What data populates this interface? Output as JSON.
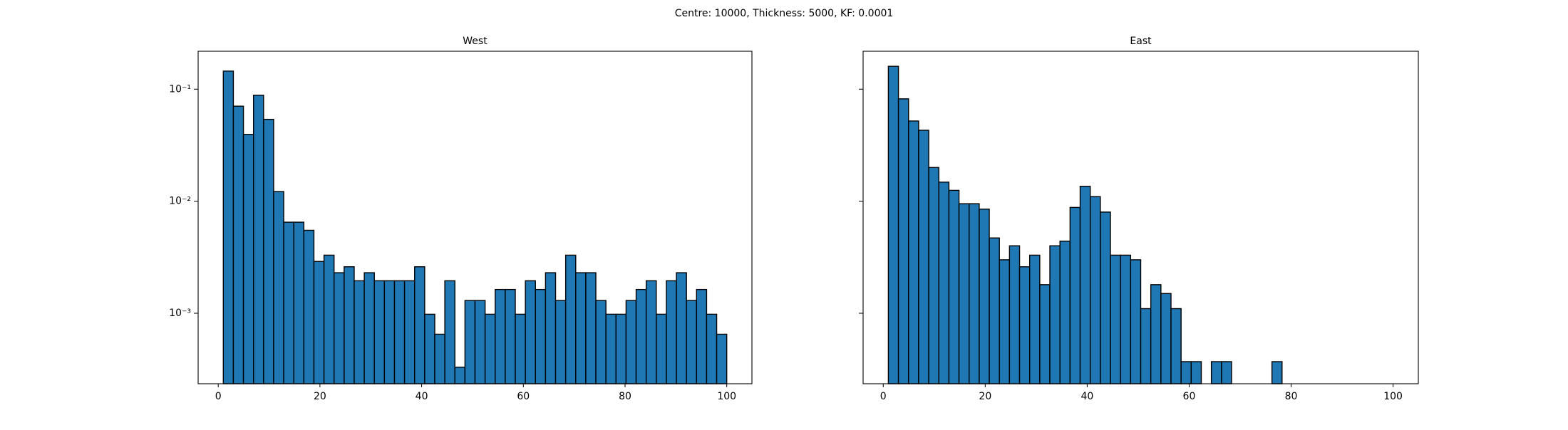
{
  "chart_data": {
    "title": "Centre: 10000, Thickness: 5000, KF: 0.0001",
    "charts": [
      {
        "type": "histogram",
        "title": "West",
        "color": "#1f77b4",
        "edgecolor": "#000000",
        "log_y": true,
        "bins": [
          1,
          2.98,
          4.96,
          6.94,
          8.92,
          10.9,
          12.88,
          14.86,
          16.84,
          18.82,
          20.8,
          22.78,
          24.76,
          26.74,
          28.72,
          30.7,
          32.68,
          34.66,
          36.64,
          38.62,
          40.6,
          42.58,
          44.56,
          46.54,
          48.52,
          50.5,
          52.48,
          54.46,
          56.44,
          58.42,
          60.4,
          62.38,
          64.36,
          66.34,
          68.32,
          70.3,
          72.28,
          74.26,
          76.24,
          78.22,
          80.2,
          82.18,
          84.16,
          86.14,
          88.12,
          90.1,
          92.08,
          94.06,
          96.04,
          98.02,
          100
        ],
        "values": [
          0.145,
          0.0705,
          0.0395,
          0.0884,
          0.0538,
          0.0122,
          0.0065,
          0.0065,
          0.0055,
          0.0029,
          0.0033,
          0.0023,
          0.0026,
          0.00195,
          0.0023,
          0.00195,
          0.00195,
          0.00195,
          0.00195,
          0.0026,
          0.00098,
          0.00065,
          0.00195,
          0.00033,
          0.0013,
          0.0013,
          0.00098,
          0.00163,
          0.00163,
          0.00098,
          0.00195,
          0.00163,
          0.0023,
          0.0013,
          0.0033,
          0.0023,
          0.0023,
          0.0013,
          0.00098,
          0.00098,
          0.0013,
          0.00163,
          0.00195,
          0.00098,
          0.00195,
          0.0023,
          0.0013,
          0.00163,
          0.00098,
          0.00065
        ],
        "xlim": [
          -3.95,
          104.95
        ],
        "xticks": [
          0,
          20,
          40,
          60,
          80,
          100
        ],
        "ylim": [
          0.000235,
          0.218
        ],
        "yticks": [
          {
            "value": 0.001,
            "label": "10⁻³"
          },
          {
            "value": 0.01,
            "label": "10⁻²"
          },
          {
            "value": 0.1,
            "label": "10⁻¹"
          }
        ]
      },
      {
        "type": "histogram",
        "title": "East",
        "color": "#1f77b4",
        "edgecolor": "#000000",
        "log_y": true,
        "bins": [
          1,
          2.98,
          4.96,
          6.94,
          8.92,
          10.9,
          12.88,
          14.86,
          16.84,
          18.82,
          20.8,
          22.78,
          24.76,
          26.74,
          28.72,
          30.7,
          32.68,
          34.66,
          36.64,
          38.62,
          40.6,
          42.58,
          44.56,
          46.54,
          48.52,
          50.5,
          52.48,
          54.46,
          56.44,
          58.42,
          60.4,
          62.38,
          64.36,
          66.34,
          68.32,
          70.3,
          72.28,
          74.26,
          76.24,
          78.22,
          80.2,
          82.18,
          84.16,
          86.14,
          88.12,
          90.1,
          92.08,
          94.06,
          96.04,
          98.02,
          100
        ],
        "values": [
          0.16,
          0.082,
          0.052,
          0.043,
          0.02,
          0.0148,
          0.0125,
          0.0095,
          0.0095,
          0.0085,
          0.0047,
          0.003,
          0.004,
          0.0026,
          0.0033,
          0.0018,
          0.004,
          0.0044,
          0.0088,
          0.0136,
          0.011,
          0.008,
          0.0033,
          0.0033,
          0.003,
          0.0011,
          0.0018,
          0.0015,
          0.0011,
          0.00037,
          0.00037,
          0,
          0.00037,
          0.00037,
          0,
          0,
          0,
          0,
          0.00037,
          0,
          0,
          0,
          0,
          0,
          0,
          0,
          0,
          0,
          0,
          0
        ],
        "xlim": [
          -3.95,
          104.95
        ],
        "xticks": [
          0,
          20,
          40,
          60,
          80,
          100
        ],
        "ylim": [
          0.000235,
          0.218
        ],
        "yticks": [
          {
            "value": 0.001,
            "label": "10⁻³"
          },
          {
            "value": 0.01,
            "label": "10⁻²"
          },
          {
            "value": 0.1,
            "label": "10⁻¹"
          }
        ]
      }
    ]
  }
}
